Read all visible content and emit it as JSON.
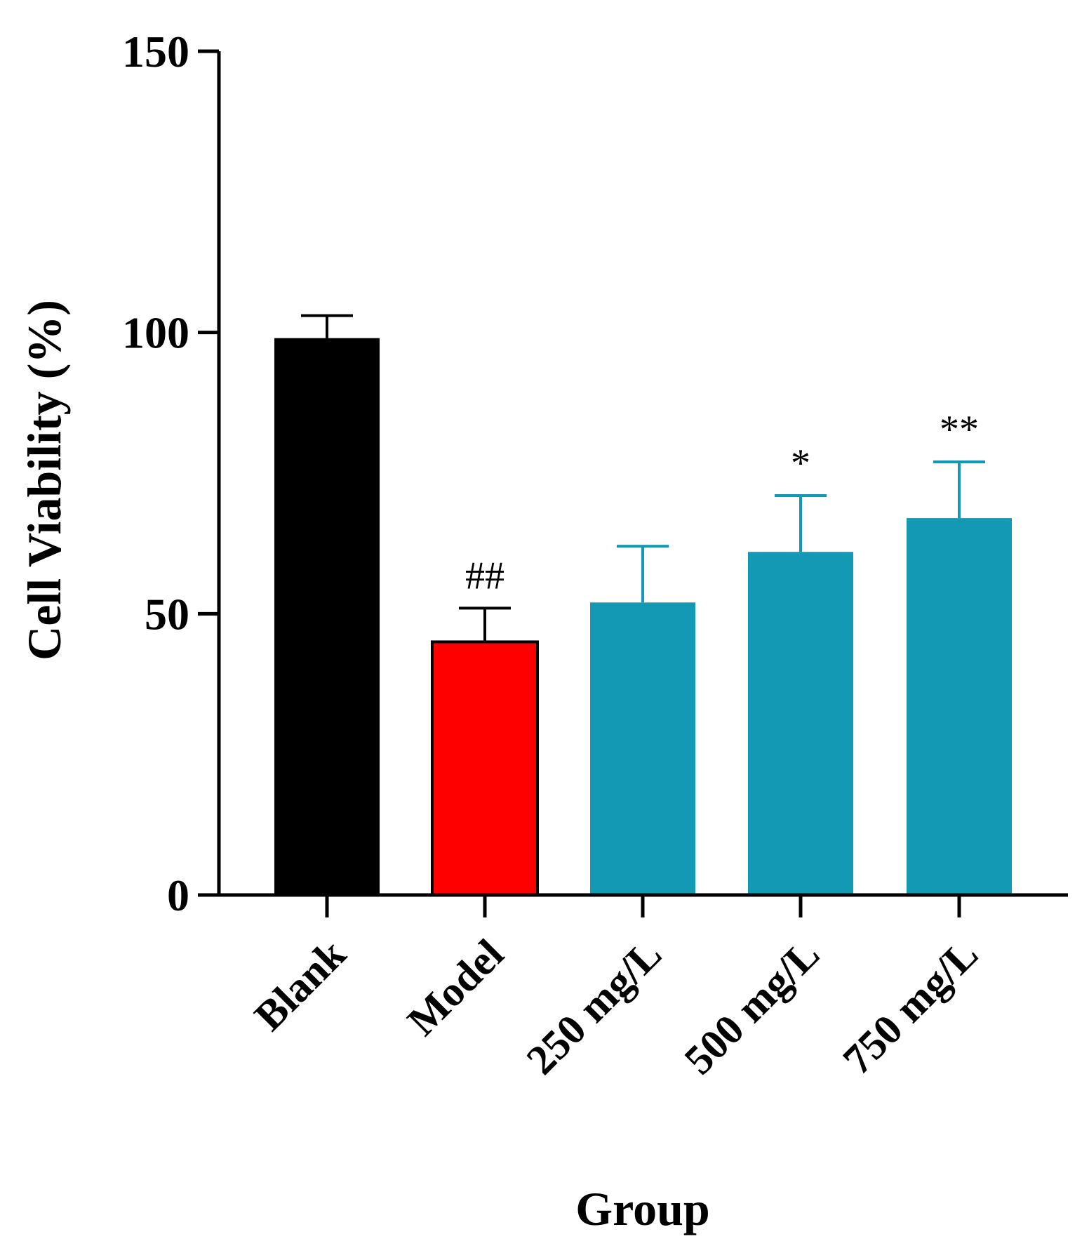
{
  "chart_data": {
    "type": "bar",
    "title": "",
    "xlabel": "Group",
    "ylabel": "Cell Viability (%)",
    "ylim": [
      0,
      150
    ],
    "yticks": [
      0,
      50,
      100,
      150
    ],
    "grid": false,
    "legend": "none",
    "categories": [
      "Blank",
      "Model",
      "250 mg/L",
      "500 mg/L",
      "750 mg/L"
    ],
    "values": [
      99,
      45,
      52,
      61,
      67
    ],
    "errors": [
      4,
      6,
      10,
      10,
      10
    ],
    "annotations": [
      "",
      "##",
      "",
      "*",
      "**"
    ],
    "colors": [
      "#000000",
      "#ff0000",
      "#1499b4",
      "#1499b4",
      "#1499b4"
    ],
    "error_colors": [
      "#000000",
      "#000000",
      "#1499b4",
      "#1499b4",
      "#1499b4"
    ]
  }
}
